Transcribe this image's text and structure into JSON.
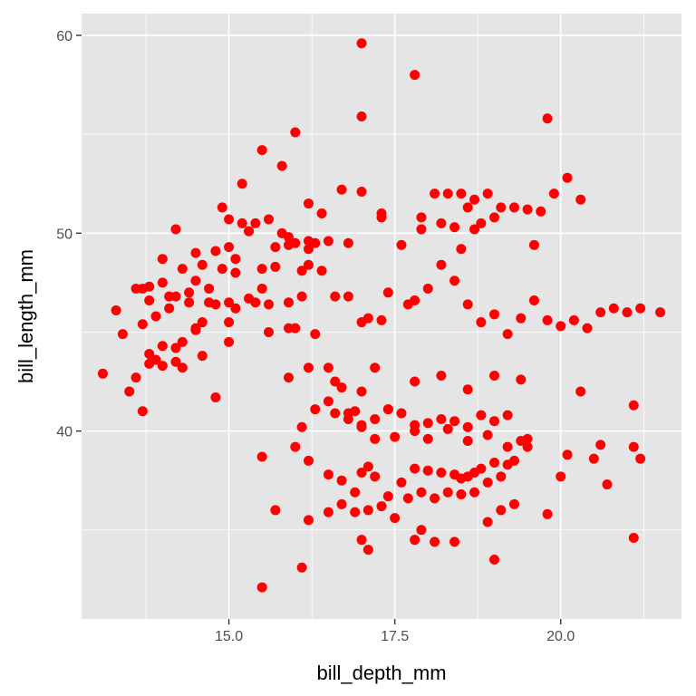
{
  "chart_data": {
    "type": "scatter",
    "xlabel": "bill_depth_mm",
    "ylabel": "bill_length_mm",
    "xlim": [
      12.78,
      21.82
    ],
    "ylim": [
      30.5,
      61.1
    ],
    "x_ticks": [
      15,
      17.5,
      20
    ],
    "x_tick_labels": [
      "15.0",
      "17.5",
      "20.0"
    ],
    "y_ticks": [
      40,
      50,
      60
    ],
    "y_tick_labels": [
      "40",
      "50",
      "60"
    ],
    "grid": true,
    "panel_color": "#e5e5e5",
    "grid_color": "#ffffff",
    "point_color": "#ff0000",
    "legend": "none",
    "series": [
      {
        "x": [
          13.1,
          13.3,
          13.4,
          13.5,
          13.7,
          13.6,
          13.7,
          13.8,
          13.9,
          14.0,
          14.0,
          14.1,
          14.2,
          14.2,
          14.3,
          14.4,
          14.5,
          14.5,
          14.6,
          14.7,
          14.8,
          14.8,
          14.9,
          15.0,
          15.0,
          15.1,
          15.2,
          15.3,
          15.4,
          15.5,
          15.7,
          15.8,
          15.9,
          16.0,
          16.1,
          16.2,
          16.3,
          16.4,
          14.0,
          14.2,
          14.3,
          14.5,
          14.6,
          15.0,
          15.0,
          15.1,
          15.3,
          15.5,
          15.6,
          15.9,
          16.1,
          16.2,
          16.6,
          16.8,
          17.0,
          17.1,
          17.3,
          17.4,
          17.7,
          17.8,
          18.0,
          18.2,
          18.4,
          18.6,
          18.8,
          19.0,
          19.2,
          19.4,
          19.6,
          19.8,
          20.0,
          20.2,
          20.4,
          20.6,
          20.8,
          21.0,
          21.2,
          21.5,
          18.1,
          18.3,
          18.5,
          18.7,
          18.9,
          19.1,
          19.3,
          19.5,
          19.7,
          19.9,
          20.1,
          20.3,
          17.9,
          18.2,
          18.4,
          18.6,
          18.8,
          19.0,
          17.3,
          17.6,
          17.9,
          18.5,
          18.7,
          19.6,
          16.0,
          16.2,
          16.5,
          16.7,
          16.9,
          17.0,
          17.1,
          17.2,
          17.4,
          17.6,
          17.8,
          18.0,
          18.2,
          18.4,
          18.5,
          18.6,
          18.7,
          18.8,
          18.9,
          19.0,
          19.1,
          19.2,
          19.3,
          19.4,
          19.5,
          16.5,
          16.7,
          16.9,
          17.1,
          17.3,
          17.5,
          17.7,
          17.9,
          18.1,
          18.3,
          18.5,
          18.7,
          18.9,
          19.1,
          19.3,
          16.6,
          16.8,
          17.0,
          17.2,
          17.4,
          17.6,
          17.8,
          18.0,
          18.2,
          18.4,
          18.6,
          18.8,
          19.0,
          19.2,
          16.1,
          16.3,
          16.5,
          16.8,
          17.0,
          17.2,
          17.5,
          17.8,
          18.0,
          18.3,
          18.6,
          18.9,
          19.2,
          19.5,
          15.9,
          16.2,
          16.6,
          17.0,
          17.4,
          17.8,
          18.2,
          18.6,
          19.0,
          19.4,
          17.1,
          17.9,
          18.1,
          18.4,
          19.0,
          19.8,
          20.0,
          20.3,
          20.7,
          21.1,
          21.1,
          21.2,
          20.6,
          20.1,
          20.5,
          17.0,
          17.8,
          15.5,
          16.1,
          21.1,
          17.0,
          17.8,
          19.8,
          14.9,
          15.2,
          15.5,
          15.8,
          16.0,
          16.2,
          16.4,
          16.7,
          17.0,
          17.3,
          15.3,
          15.6,
          15.9,
          16.2,
          16.5,
          16.8,
          15.1,
          15.4,
          15.7,
          16.0,
          16.3,
          13.8,
          14.1,
          14.4,
          14.7,
          15.0,
          13.9,
          14.2,
          14.5,
          14.8,
          13.8,
          14.0,
          14.3,
          14.6,
          13.6,
          13.7,
          13.8
        ],
        "y": [
          42.9,
          46.1,
          44.9,
          42.0,
          45.4,
          47.2,
          47.2,
          47.3,
          45.8,
          47.5,
          48.7,
          46.2,
          46.8,
          50.2,
          48.2,
          46.5,
          47.6,
          49.0,
          48.4,
          46.5,
          49.1,
          46.4,
          48.2,
          50.7,
          49.3,
          48.7,
          50.5,
          50.1,
          50.5,
          48.2,
          49.3,
          50.0,
          49.8,
          49.5,
          48.1,
          49.6,
          49.5,
          48.1,
          43.3,
          43.5,
          44.5,
          45.1,
          45.5,
          45.5,
          46.5,
          46.2,
          46.7,
          47.2,
          46.4,
          46.5,
          46.8,
          48.4,
          46.8,
          46.8,
          45.5,
          45.7,
          45.6,
          47.0,
          46.4,
          46.6,
          47.2,
          48.4,
          47.6,
          46.4,
          45.5,
          45.9,
          44.9,
          45.7,
          46.6,
          45.6,
          45.3,
          45.6,
          45.2,
          46.0,
          46.2,
          46.0,
          46.2,
          46.0,
          52.0,
          52.0,
          52.0,
          51.7,
          52.0,
          51.3,
          51.3,
          51.2,
          51.1,
          52.0,
          52.8,
          51.7,
          50.8,
          50.5,
          50.3,
          51.3,
          50.5,
          50.8,
          50.8,
          49.4,
          50.2,
          49.2,
          50.2,
          49.4,
          39.2,
          38.5,
          37.8,
          37.5,
          36.9,
          37.9,
          38.2,
          37.7,
          36.7,
          37.4,
          38.1,
          38.0,
          37.9,
          37.8,
          37.6,
          37.7,
          37.9,
          38.1,
          37.4,
          38.4,
          37.7,
          38.3,
          38.5,
          39.5,
          39.2,
          35.9,
          36.3,
          35.9,
          36.0,
          36.2,
          35.6,
          36.6,
          36.9,
          36.6,
          36.9,
          36.8,
          36.9,
          35.4,
          36.0,
          36.3,
          40.9,
          40.6,
          40.3,
          40.6,
          41.1,
          40.9,
          40.3,
          40.4,
          40.6,
          40.5,
          40.2,
          40.8,
          40.5,
          40.8,
          40.2,
          41.1,
          41.5,
          40.9,
          40.2,
          39.6,
          39.7,
          40.0,
          39.6,
          40.1,
          39.5,
          39.8,
          39.2,
          39.6,
          42.7,
          43.2,
          42.5,
          42.0,
          41.1,
          42.5,
          42.8,
          42.1,
          42.8,
          42.6,
          34.0,
          35.0,
          34.4,
          34.4,
          33.5,
          35.8,
          37.7,
          42.0,
          37.3,
          34.6,
          39.2,
          38.6,
          39.3,
          38.8,
          38.6,
          34.5,
          34.5,
          32.1,
          33.1,
          41.3,
          55.9,
          58.0,
          55.8,
          51.3,
          52.5,
          54.2,
          53.4,
          55.1,
          51.5,
          51.0,
          52.2,
          52.1,
          51.0,
          50.1,
          50.7,
          49.4,
          49.2,
          49.6,
          49.5,
          48.0,
          46.5,
          48.3,
          45.2,
          44.9,
          46.6,
          46.8,
          47.0,
          47.2,
          44.5,
          43.6,
          44.2,
          45.2,
          41.7,
          43.4,
          44.3,
          43.2,
          43.8,
          42.7,
          41.0,
          43.9
        ],
        "name": ""
      },
      {
        "x": [
          17.0,
          15.6,
          15.9,
          16.7,
          16.5,
          16.9,
          17.2,
          15.5,
          15.7,
          16.2
        ],
        "y": [
          59.6,
          45.0,
          45.2,
          42.2,
          43.2,
          41.0,
          43.2,
          38.7,
          36.0,
          35.5
        ],
        "name": ""
      }
    ]
  }
}
